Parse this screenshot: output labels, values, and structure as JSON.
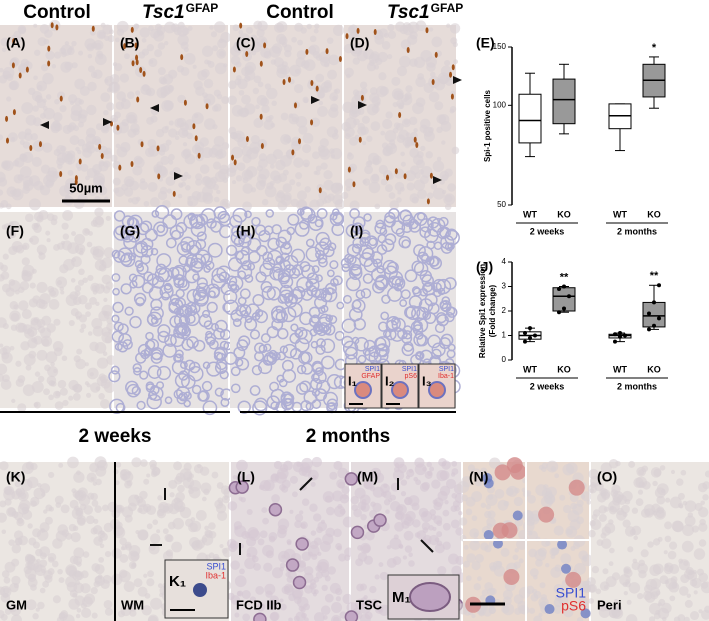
{
  "panel_labels": [
    "(A)",
    "(B)",
    "(C)",
    "(D)",
    "(E)",
    "(F)",
    "(G)",
    "(H)",
    "(I)",
    "(J)",
    "(K)",
    "(L)",
    "(M)",
    "(N)",
    "(O)"
  ],
  "column_headers": [
    {
      "text": "Control"
    },
    {
      "gene": "Tsc1",
      "sup": "GFAP"
    },
    {
      "text": "Control"
    },
    {
      "gene": "Tsc1",
      "sup": "GFAP"
    }
  ],
  "scale_bar": "50µm",
  "time_labels": [
    "2 weeks",
    "2 months"
  ],
  "region_labels": [
    "GM",
    "WM",
    "FCD IIb",
    "TSC",
    "Peri"
  ],
  "insets": [
    {
      "label": "I₁",
      "stains": [
        "SPI1",
        "GFAP"
      ]
    },
    {
      "label": "I₂",
      "stains": [
        "SPI1",
        "pS6"
      ]
    },
    {
      "label": "I₃",
      "stains": [
        "SPI1",
        "Iba-1"
      ]
    },
    {
      "label": "K₁",
      "stains": [
        "SPI1",
        "Iba-1"
      ]
    },
    {
      "label": "M₁"
    }
  ],
  "panel_n_stains": [
    "SPI1",
    "pS6"
  ],
  "chart_data": [
    {
      "type": "box",
      "y_label": [
        "Spi-1 positive cells"
      ],
      "categories": [
        "WT",
        "KO",
        "WT",
        "KO"
      ],
      "groups": [
        "2 weeks",
        "2 months"
      ],
      "ylim": [
        50,
        150
      ],
      "yticks": [
        50,
        100,
        150
      ],
      "log_scale": true,
      "boxes": [
        {
          "min": 70,
          "q1": 77,
          "median": 90,
          "q3": 108,
          "max": 125,
          "color": "#ffffff"
        },
        {
          "min": 82,
          "q1": 88,
          "median": 104,
          "q3": 120,
          "max": 133,
          "color": "#999999"
        },
        {
          "min": 73,
          "q1": 85,
          "median": 93,
          "q3": 101,
          "max": 101,
          "color": "#ffffff"
        },
        {
          "min": 98,
          "q1": 106,
          "median": 119,
          "q3": 133,
          "max": 140,
          "color": "#999999",
          "label": "*"
        }
      ]
    },
    {
      "type": "box",
      "y_label": [
        "Relative Spi1 expression",
        "(Fold change)"
      ],
      "categories": [
        "WT",
        "KO",
        "WT",
        "KO"
      ],
      "groups": [
        "2 weeks",
        "2 months"
      ],
      "ylim": [
        0,
        4
      ],
      "yticks": [
        0,
        1,
        2,
        3,
        4
      ],
      "log_scale": false,
      "boxes": [
        {
          "min": 0.75,
          "q1": 0.85,
          "median": 1.0,
          "q3": 1.15,
          "max": 1.3,
          "color": "#ffffff",
          "points": [
            0.75,
            0.9,
            1.0,
            1.1,
            1.3
          ]
        },
        {
          "min": 1.95,
          "q1": 2.0,
          "median": 2.6,
          "q3": 2.95,
          "max": 3.0,
          "color": "#999999",
          "points": [
            1.95,
            2.1,
            2.6,
            2.9,
            3.0
          ],
          "label": "**"
        },
        {
          "min": 0.75,
          "q1": 0.9,
          "median": 1.0,
          "q3": 1.05,
          "max": 1.1,
          "color": "#ffffff",
          "points": [
            0.75,
            0.95,
            1.0,
            1.05,
            1.1
          ]
        },
        {
          "min": 1.25,
          "q1": 1.35,
          "median": 1.8,
          "q3": 2.35,
          "max": 3.05,
          "color": "#999999",
          "points": [
            1.25,
            1.4,
            1.7,
            1.9,
            2.35,
            3.05
          ],
          "label": "**"
        }
      ]
    }
  ]
}
